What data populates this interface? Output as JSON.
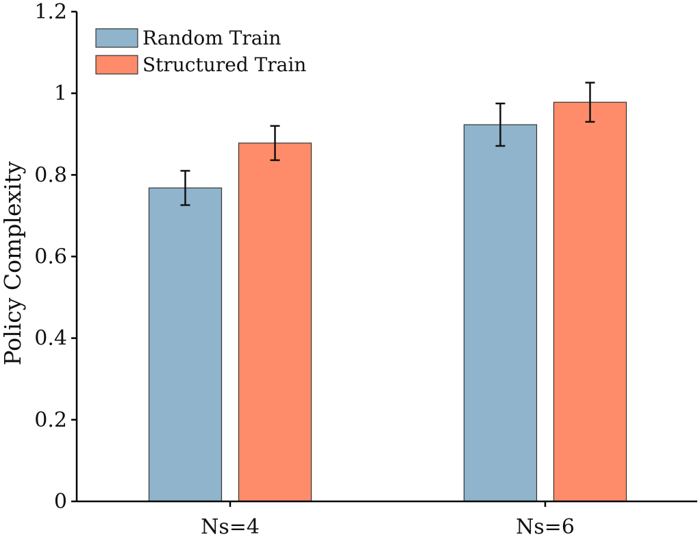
{
  "chart_data": {
    "type": "bar",
    "title": "",
    "xlabel": "",
    "ylabel": "Policy Complexity",
    "categories": [
      "Ns=4",
      "Ns=6"
    ],
    "series": [
      {
        "name": "Random Train",
        "color": "#8fb4cc",
        "values": [
          0.768,
          0.923
        ],
        "error": [
          0.042,
          0.052
        ]
      },
      {
        "name": "Structured Train",
        "color": "#fe8c6a",
        "values": [
          0.878,
          0.978
        ],
        "error": [
          0.042,
          0.048
        ]
      }
    ],
    "ylim": [
      0,
      1.2
    ],
    "yticks": [
      0,
      0.2,
      0.4,
      0.6,
      0.8,
      1,
      1.2
    ],
    "ytick_labels": [
      "0",
      "0.2",
      "0.4",
      "0.6",
      "0.8",
      "1",
      "1.2"
    ],
    "grid": false,
    "legend_position": "top-left"
  }
}
